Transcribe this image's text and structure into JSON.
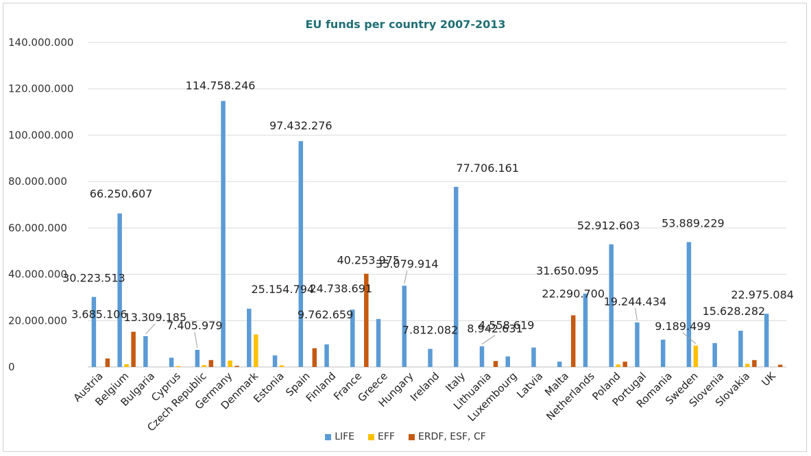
{
  "chart_data": {
    "type": "bar",
    "title": "EU funds per country 2007-2013",
    "xlabel": "",
    "ylabel": "",
    "ylim": [
      0,
      140000000
    ],
    "yticks": [
      0,
      20000000,
      40000000,
      60000000,
      80000000,
      100000000,
      120000000,
      140000000
    ],
    "ytick_labels": [
      "0",
      "20.000.000",
      "40.000.000",
      "60.000.000",
      "80.000.000",
      "100.000.000",
      "120.000.000",
      "140.000.000"
    ],
    "grid": true,
    "legend_position": "bottom",
    "categories": [
      "Austria",
      "Belgium",
      "Bulgaria",
      "Cyprus",
      "Czech Republic",
      "Germany",
      "Denmark",
      "Estonia",
      "Spain",
      "Finland",
      "France",
      "Greece",
      "Hungary",
      "Ireland",
      "Italy",
      "Lithuania",
      "Luxembourg",
      "Latvia",
      "Malta",
      "Netherlands",
      "Poland",
      "Portugal",
      "Romania",
      "Sweden",
      "Slovenia",
      "Slovakia",
      "UK"
    ],
    "series": [
      {
        "name": "LIFE",
        "color": "#5b9bd5",
        "values": [
          30223513,
          66250607,
          13309185,
          4000000,
          7405979,
          114758246,
          25154794,
          5000000,
          97432276,
          9762659,
          24738691,
          20700000,
          35079914,
          7812082,
          77706161,
          8942631,
          4558619,
          8400000,
          2300000,
          31650095,
          52912603,
          19244434,
          11800000,
          53889229,
          10300000,
          15628282,
          22975084
        ]
      },
      {
        "name": "EFF",
        "color": "#ffc000",
        "values": [
          0,
          1200000,
          0,
          400000,
          800000,
          2800000,
          14000000,
          700000,
          0,
          0,
          0,
          0,
          0,
          0,
          0,
          0,
          0,
          0,
          0,
          0,
          1100000,
          0,
          0,
          9189499,
          0,
          1400000,
          0
        ]
      },
      {
        "name": "ERDF, ESF, CF",
        "color": "#c55a11",
        "values": [
          3685106,
          15200000,
          0,
          0,
          3000000,
          500000,
          0,
          0,
          8100000,
          0,
          40253975,
          0,
          0,
          0,
          0,
          2600000,
          0,
          0,
          22290700,
          0,
          2300000,
          0,
          0,
          0,
          0,
          3000000,
          1000000
        ]
      }
    ],
    "data_labels": [
      {
        "text": "30.223.513",
        "category": "Austria",
        "series": "LIFE"
      },
      {
        "text": "3.685.106",
        "category": "Austria",
        "series": "ERDF, ESF, CF"
      },
      {
        "text": "66.250.607",
        "category": "Belgium",
        "series": "LIFE"
      },
      {
        "text": "13.309.185",
        "category": "Bulgaria",
        "series": "LIFE"
      },
      {
        "text": "7.405.979",
        "category": "Czech Republic",
        "series": "LIFE"
      },
      {
        "text": "114.758.246",
        "category": "Germany",
        "series": "LIFE"
      },
      {
        "text": "25.154.794",
        "category": "Denmark",
        "series": "LIFE"
      },
      {
        "text": "97.432.276",
        "category": "Spain",
        "series": "LIFE"
      },
      {
        "text": "9.762.659",
        "category": "Finland",
        "series": "LIFE"
      },
      {
        "text": "24.738.691",
        "category": "France",
        "series": "LIFE"
      },
      {
        "text": "40.253.975",
        "category": "France",
        "series": "ERDF, ESF, CF"
      },
      {
        "text": "35.079.914",
        "category": "Hungary",
        "series": "LIFE"
      },
      {
        "text": "7.812.082",
        "category": "Ireland",
        "series": "LIFE"
      },
      {
        "text": "77.706.161",
        "category": "Italy",
        "series": "LIFE"
      },
      {
        "text": "8.942.631",
        "category": "Lithuania",
        "series": "LIFE"
      },
      {
        "text": "4.558.619",
        "category": "Luxembourg",
        "series": "LIFE"
      },
      {
        "text": "22.290.700",
        "category": "Malta",
        "series": "ERDF, ESF, CF"
      },
      {
        "text": "31.650.095",
        "category": "Netherlands",
        "series": "LIFE"
      },
      {
        "text": "52.912.603",
        "category": "Poland",
        "series": "LIFE"
      },
      {
        "text": "19.244.434",
        "category": "Portugal",
        "series": "LIFE"
      },
      {
        "text": "53.889.229",
        "category": "Sweden",
        "series": "LIFE"
      },
      {
        "text": "9.189.499",
        "category": "Sweden",
        "series": "EFF"
      },
      {
        "text": "15.628.282",
        "category": "Slovakia",
        "series": "LIFE"
      },
      {
        "text": "22.975.084",
        "category": "UK",
        "series": "LIFE"
      }
    ]
  }
}
